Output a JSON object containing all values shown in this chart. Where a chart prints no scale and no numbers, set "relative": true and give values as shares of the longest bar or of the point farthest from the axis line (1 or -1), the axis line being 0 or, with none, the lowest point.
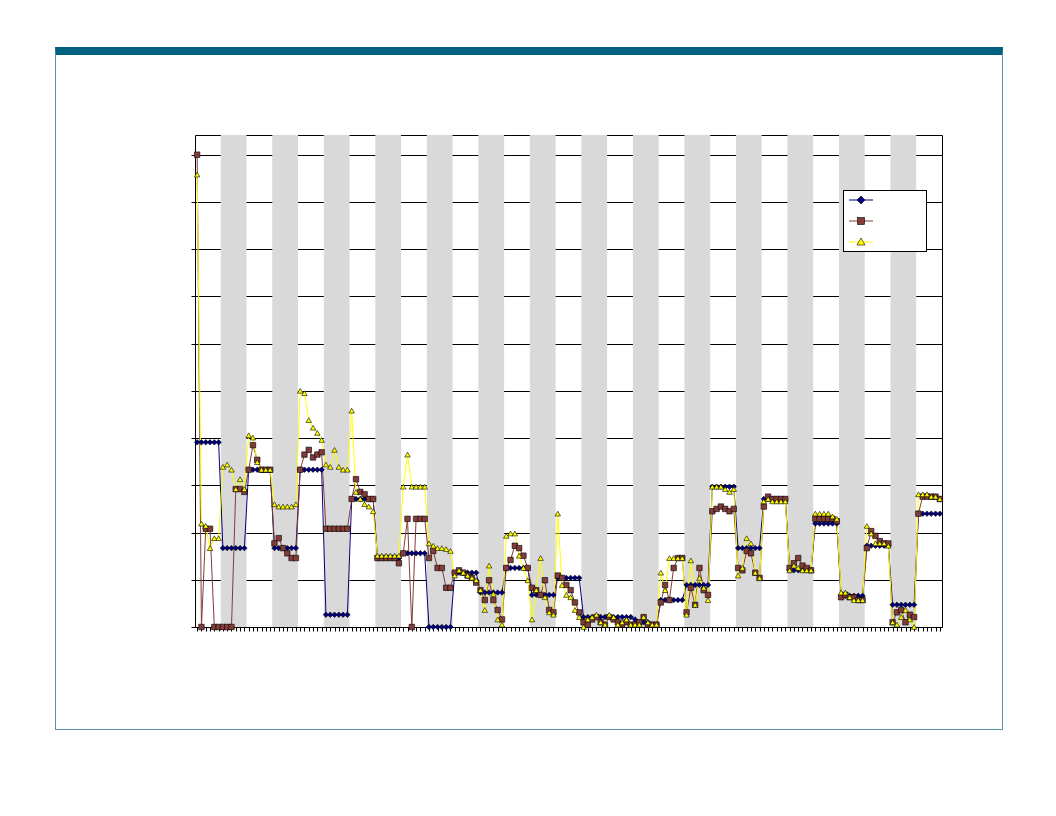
{
  "chart_data": {
    "type": "line",
    "relative": true,
    "grid": "y",
    "line_style": "solid",
    "categories": [
      null,
      null,
      null,
      null,
      null,
      null,
      null,
      null,
      null,
      null,
      null,
      null,
      null,
      null,
      null,
      null,
      null,
      null,
      null,
      null,
      null,
      null,
      null,
      null,
      null,
      null,
      null,
      null,
      null,
      null,
      null,
      null,
      null,
      null,
      null,
      null,
      null,
      null,
      null,
      null,
      null,
      null,
      null,
      null,
      null,
      null,
      null,
      null,
      null,
      null,
      null,
      null,
      null,
      null,
      null,
      null,
      null,
      null,
      null,
      null,
      null,
      null,
      null,
      null,
      null,
      null,
      null,
      null,
      null,
      null,
      null,
      null,
      null,
      null,
      null,
      null,
      null,
      null,
      null,
      null,
      null,
      null,
      null,
      null,
      null,
      null,
      null,
      null,
      null,
      null,
      null,
      null,
      null,
      null,
      null,
      null,
      null,
      null,
      null,
      null,
      null,
      null,
      null,
      null,
      null,
      null,
      null,
      null,
      null,
      null,
      null,
      null,
      null,
      null,
      null,
      null,
      null,
      null,
      null,
      null,
      null,
      null,
      null,
      null,
      null,
      null,
      null,
      null,
      null,
      null,
      null,
      null,
      null,
      null,
      null,
      null,
      null,
      null,
      null,
      null,
      null,
      null,
      null,
      null,
      null,
      null,
      null,
      null,
      null,
      null,
      null,
      null,
      null,
      null,
      null,
      null,
      null,
      null,
      null,
      null,
      null,
      null,
      null,
      null,
      null,
      null,
      null,
      null,
      null,
      null,
      null,
      null,
      null,
      null
    ],
    "series": [
      {
        "color": "#000080",
        "marker": "diamond",
        "values": [
          0.391,
          0.391,
          0.391,
          0.391,
          0.391,
          0.391,
          0.167,
          0.167,
          0.167,
          0.167,
          0.167,
          0.167,
          0.333,
          0.333,
          0.333,
          0.333,
          0.333,
          0.333,
          0.167,
          0.167,
          0.167,
          0.167,
          0.167,
          0.167,
          0.333,
          0.333,
          0.333,
          0.333,
          0.333,
          0.333,
          0.026,
          0.026,
          0.026,
          0.026,
          0.026,
          0.026,
          0.271,
          0.271,
          0.271,
          0.271,
          0.271,
          0.271,
          0.146,
          0.146,
          0.146,
          0.146,
          0.146,
          0.146,
          0.156,
          0.156,
          0.156,
          0.156,
          0.156,
          0.156,
          0,
          0,
          0,
          0,
          0,
          0,
          0.115,
          0.115,
          0.115,
          0.115,
          0.115,
          0.115,
          0.073,
          0.073,
          0.073,
          0.073,
          0.073,
          0.073,
          0.125,
          0.125,
          0.125,
          0.125,
          0.125,
          0.125,
          0.068,
          0.068,
          0.068,
          0.068,
          0.068,
          0.068,
          0.104,
          0.104,
          0.104,
          0.104,
          0.104,
          0.104,
          0.021,
          0.021,
          0.021,
          0.021,
          0.021,
          0.021,
          0.021,
          0.021,
          0.021,
          0.021,
          0.021,
          0.021,
          0.016,
          0.01,
          0.01,
          0.01,
          0.005,
          0.005,
          0.057,
          0.057,
          0.057,
          0.057,
          0.057,
          0.057,
          0.089,
          0.089,
          0.089,
          0.089,
          0.089,
          0.089,
          0.297,
          0.297,
          0.297,
          0.297,
          0.297,
          0.297,
          0.167,
          0.167,
          0.167,
          0.167,
          0.167,
          0.167,
          0.271,
          0.271,
          0.271,
          0.271,
          0.271,
          0.271,
          0.12,
          0.12,
          0.12,
          0.12,
          0.12,
          0.12,
          0.219,
          0.219,
          0.219,
          0.219,
          0.219,
          0.219,
          0.066,
          0.066,
          0.066,
          0.066,
          0.066,
          0.066,
          0.172,
          0.172,
          0.172,
          0.172,
          0.172,
          0.172,
          0.047,
          0.047,
          0.047,
          0.047,
          0.047,
          0.047,
          0.24,
          0.24,
          0.24,
          0.24,
          0.24,
          0.24
        ]
      },
      {
        "color": "#843c39",
        "marker": "square",
        "values": [
          1,
          0,
          0.208,
          0.208,
          0,
          0,
          0,
          0,
          0,
          0.292,
          0.292,
          0.286,
          0.333,
          0.385,
          0.354,
          0.333,
          0.333,
          0.333,
          0.177,
          0.188,
          0.167,
          0.156,
          0.146,
          0.146,
          0.333,
          0.365,
          0.375,
          0.359,
          0.365,
          0.37,
          0.208,
          0.208,
          0.208,
          0.208,
          0.208,
          0.208,
          0.271,
          0.313,
          0.286,
          0.281,
          0.271,
          0.271,
          0.146,
          0.146,
          0.146,
          0.146,
          0.146,
          0.135,
          0.156,
          0.229,
          0,
          0.229,
          0.229,
          0.229,
          0.146,
          0.161,
          0.125,
          0.125,
          0.083,
          0.083,
          0.115,
          0.12,
          0.115,
          0.109,
          0.104,
          0.094,
          0.078,
          0.057,
          0.099,
          0.057,
          0.036,
          0.016,
          0.125,
          0.142,
          0.172,
          0.167,
          0.151,
          0.125,
          0.083,
          0.078,
          0.068,
          0.099,
          0.036,
          0.031,
          0.109,
          0.104,
          0.089,
          0.078,
          0.052,
          0.031,
          0.01,
          0.005,
          0.016,
          0.021,
          0.01,
          0.005,
          0.021,
          0.016,
          0.01,
          0.005,
          0.01,
          0.005,
          0.005,
          0.01,
          0.021,
          0.005,
          0.005,
          0.005,
          0.052,
          0.089,
          0.057,
          0.125,
          0.146,
          0.146,
          0.031,
          0.083,
          0.047,
          0.125,
          0.078,
          0.068,
          0.245,
          0.25,
          0.255,
          0.25,
          0.245,
          0.25,
          0.125,
          0.12,
          0.161,
          0.156,
          0.115,
          0.104,
          0.255,
          0.276,
          0.271,
          0.271,
          0.271,
          0.271,
          0.125,
          0.135,
          0.146,
          0.13,
          0.125,
          0.12,
          0.229,
          0.229,
          0.229,
          0.229,
          0.229,
          0.224,
          0.063,
          0.068,
          0.063,
          0.063,
          0.057,
          0.057,
          0.167,
          0.203,
          0.193,
          0.182,
          0.177,
          0.177,
          0.01,
          0.031,
          0.036,
          0.01,
          0.026,
          0.021,
          0.24,
          0.276,
          0.276,
          0.276,
          0.276,
          0.271
        ]
      },
      {
        "color": "#ffff00",
        "marker": "triangle",
        "values": [
          0.958,
          0.219,
          0.214,
          0.167,
          0.188,
          0.188,
          0.339,
          0.344,
          0.333,
          0.292,
          0.313,
          0.292,
          0.406,
          0.401,
          0.349,
          0.333,
          0.333,
          0.333,
          0.26,
          0.255,
          0.255,
          0.255,
          0.255,
          0.26,
          0.5,
          0.495,
          0.438,
          0.422,
          0.411,
          0.396,
          0.344,
          0.339,
          0.375,
          0.339,
          0.333,
          0.333,
          0.458,
          0.286,
          0.271,
          0.26,
          0.255,
          0.245,
          0.151,
          0.151,
          0.151,
          0.151,
          0.151,
          0.151,
          0.297,
          0.365,
          0.297,
          0.297,
          0.297,
          0.297,
          0.177,
          0.172,
          0.167,
          0.167,
          0.165,
          0.161,
          0.109,
          0.12,
          0.115,
          0.109,
          0.104,
          0.099,
          0.078,
          0.036,
          0.13,
          0.07,
          0.016,
          0.005,
          0.193,
          0.198,
          0.198,
          0.151,
          0.125,
          0.099,
          0.016,
          0.078,
          0.146,
          0.063,
          0.031,
          0.026,
          0.24,
          0.089,
          0.068,
          0.063,
          0.036,
          0.021,
          0,
          0.016,
          0.021,
          0.026,
          0.01,
          0.005,
          0.026,
          0.021,
          0.005,
          0.01,
          0.016,
          0.005,
          0.005,
          0.005,
          0.021,
          0.01,
          0.005,
          0.005,
          0.115,
          0.078,
          0.146,
          0.146,
          0.146,
          0.146,
          0.026,
          0.141,
          0.047,
          0.104,
          0.083,
          0.057,
          0.297,
          0.297,
          0.297,
          0.292,
          0.286,
          0.292,
          0.109,
          0.125,
          0.188,
          0.177,
          0.115,
          0.104,
          0.266,
          0.271,
          0.266,
          0.266,
          0.266,
          0.266,
          0.12,
          0.13,
          0.125,
          0.12,
          0.12,
          0.12,
          0.24,
          0.24,
          0.24,
          0.24,
          0.234,
          0.229,
          0.073,
          0.073,
          0.063,
          0.057,
          0.057,
          0.057,
          0.214,
          0.198,
          0.177,
          0.177,
          0.177,
          0.172,
          0.01,
          0.005,
          0.021,
          0.036,
          0.016,
          0,
          0.281,
          0.281,
          0.281,
          0.276,
          0.276,
          0.271
        ]
      }
    ]
  }
}
